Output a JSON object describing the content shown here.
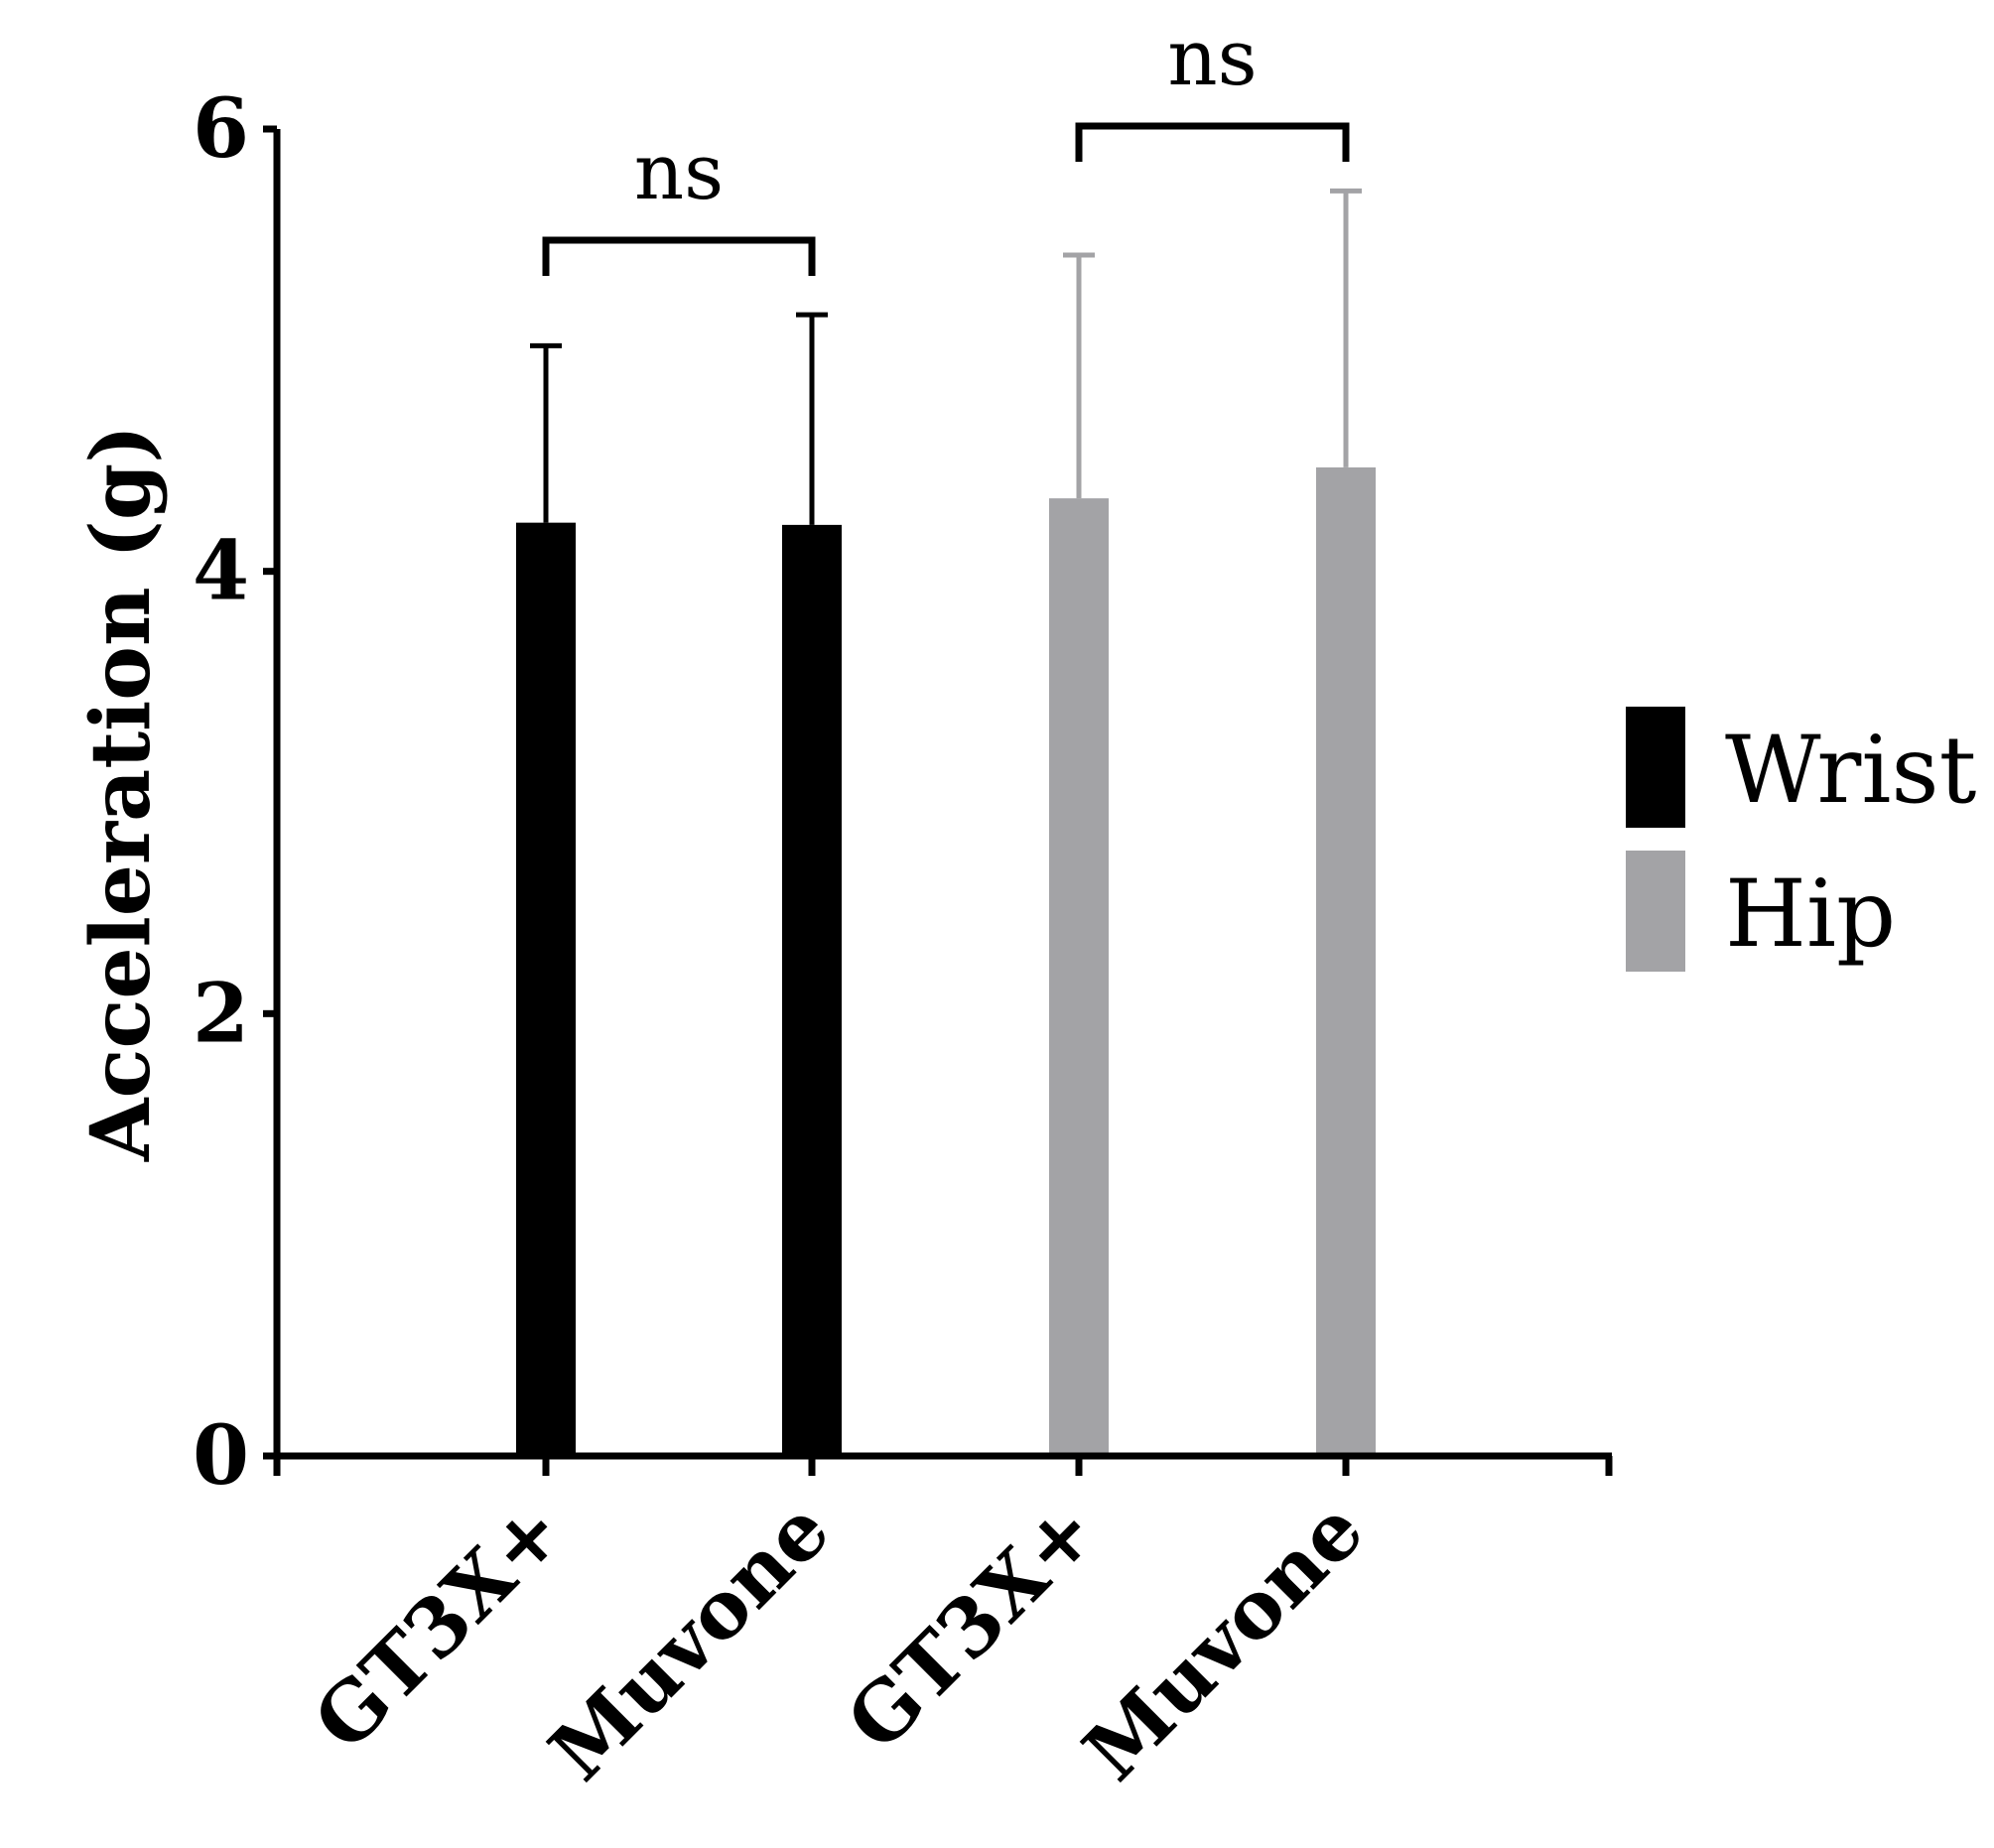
{
  "chart_data": {
    "type": "bar",
    "ylabel": "Acceleration (g)",
    "ylim": [
      0,
      6
    ],
    "yticks": [
      "0",
      "2",
      "4",
      "6"
    ],
    "categories": [
      "GT3X+",
      "Muvone",
      "GT3X+",
      "Muvone"
    ],
    "series": [
      {
        "name": "Wrist",
        "color": "#000000",
        "points": [
          {
            "category_index": 0,
            "value": 4.22,
            "error": 0.8
          },
          {
            "category_index": 1,
            "value": 4.21,
            "error": 0.95
          }
        ]
      },
      {
        "name": "Hip",
        "color": "#a3a3a6",
        "points": [
          {
            "category_index": 2,
            "value": 4.33,
            "error": 1.1
          },
          {
            "category_index": 3,
            "value": 4.47,
            "error": 1.25
          }
        ]
      }
    ],
    "comparisons": [
      {
        "from_index": 0,
        "to_index": 1,
        "label": "ns"
      },
      {
        "from_index": 2,
        "to_index": 3,
        "label": "ns"
      }
    ],
    "legend": {
      "placement": "right",
      "entries": [
        "Wrist",
        "Hip"
      ]
    }
  }
}
